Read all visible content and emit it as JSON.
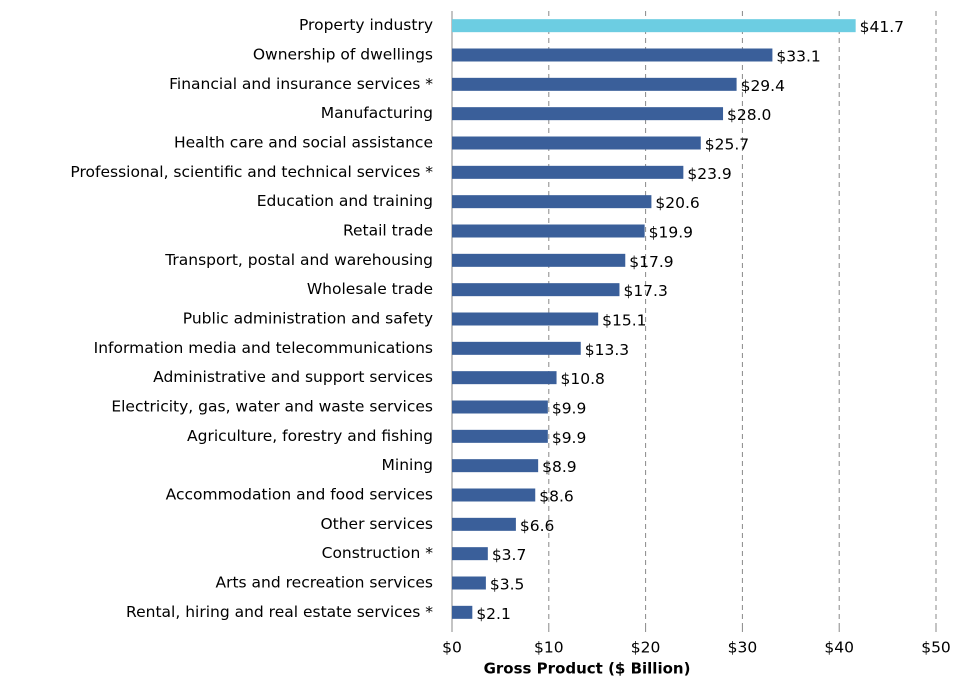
{
  "chart_data": {
    "type": "hbar",
    "xlabel": "Gross Product ($ Billion)",
    "categories": [
      "Property industry",
      "Ownership of dwellings",
      "Financial and insurance services *",
      "Manufacturing",
      "Health care and social assistance",
      "Professional, scientific and technical services *",
      "Education and training",
      "Retail trade",
      "Transport, postal and warehousing",
      "Wholesale trade",
      "Public administration and safety",
      "Information media and telecommunications",
      "Administrative and support services",
      "Electricity, gas, water and waste services",
      "Agriculture, forestry and fishing",
      "Mining",
      "Accommodation and food services",
      "Other services",
      "Construction *",
      "Arts and recreation services",
      "Rental, hiring and real estate services *"
    ],
    "values": [
      41.7,
      33.1,
      29.4,
      28.0,
      25.7,
      23.9,
      20.6,
      19.9,
      17.9,
      17.3,
      15.1,
      13.3,
      10.8,
      9.9,
      9.9,
      8.9,
      8.6,
      6.6,
      3.7,
      3.5,
      2.1
    ],
    "value_labels": [
      "$41.7",
      "$33.1",
      "$29.4",
      "$28.0",
      "$25.7",
      "$23.9",
      "$20.6",
      "$19.9",
      "$17.9",
      "$17.3",
      "$15.1",
      "$13.3",
      "$10.8",
      "$9.9",
      "$9.9",
      "$8.9",
      "$8.6",
      "$6.6",
      "$3.7",
      "$3.5",
      "$2.1"
    ],
    "colors": [
      "#6ccde2",
      "#3a5f9a",
      "#3a5f9a",
      "#3a5f9a",
      "#3a5f9a",
      "#3a5f9a",
      "#3a5f9a",
      "#3a5f9a",
      "#3a5f9a",
      "#3a5f9a",
      "#3a5f9a",
      "#3a5f9a",
      "#3a5f9a",
      "#3a5f9a",
      "#3a5f9a",
      "#3a5f9a",
      "#3a5f9a",
      "#3a5f9a",
      "#3a5f9a",
      "#3a5f9a",
      "#3a5f9a"
    ],
    "xlim": [
      0,
      50
    ],
    "xticks": [
      {
        "value": 0,
        "label": "$0"
      },
      {
        "value": 10,
        "label": "$10"
      },
      {
        "value": 20,
        "label": "$20"
      },
      {
        "value": 30,
        "label": "$30"
      },
      {
        "value": 40,
        "label": "$40"
      },
      {
        "value": 50,
        "label": "$50"
      }
    ],
    "grid": true
  }
}
